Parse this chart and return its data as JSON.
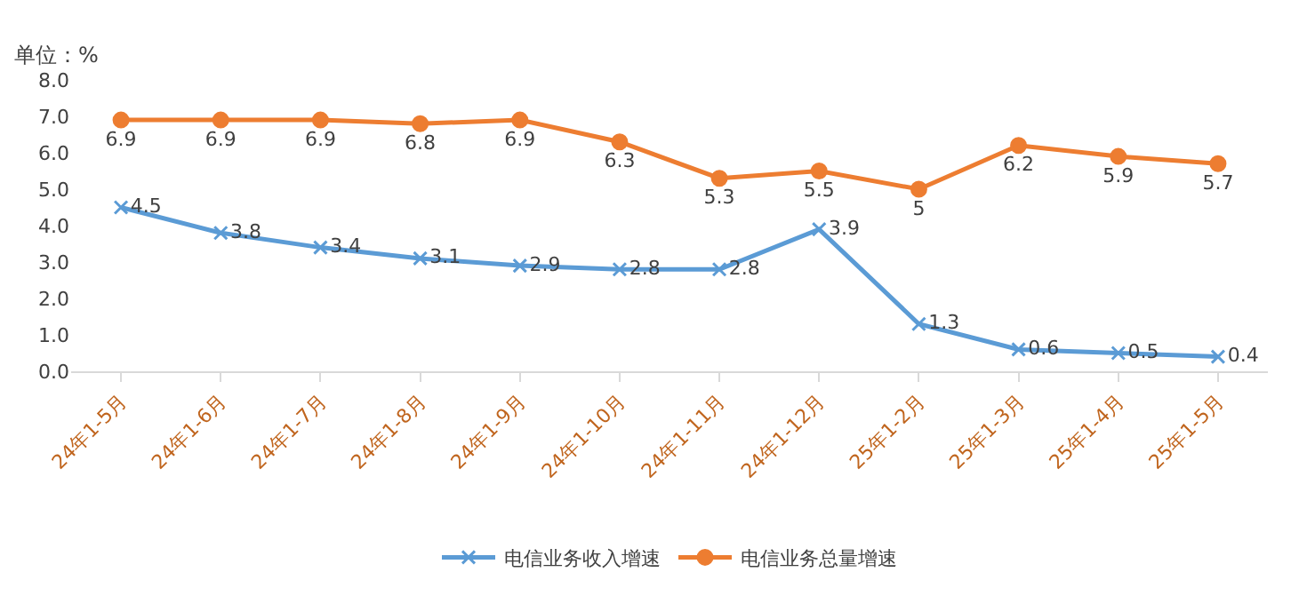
{
  "chart_data": {
    "type": "line",
    "ylabel": "单位：%",
    "categories": [
      "24年1-5月",
      "24年1-6月",
      "24年1-7月",
      "24年1-8月",
      "24年1-9月",
      "24年1-10月",
      "24年1-11月",
      "24年1-12月",
      "25年1-2月",
      "25年1-3月",
      "25年1-4月",
      "25年1-5月"
    ],
    "series": [
      {
        "name": "电信业务收入增速",
        "color": "#5b9bd5",
        "marker": "cross",
        "values": [
          4.5,
          3.8,
          3.4,
          3.1,
          2.9,
          2.8,
          2.8,
          3.9,
          1.3,
          0.6,
          0.5,
          0.4
        ]
      },
      {
        "name": "电信业务总量增速",
        "color": "#ed7d31",
        "marker": "circle",
        "values": [
          6.9,
          6.9,
          6.9,
          6.8,
          6.9,
          6.3,
          5.3,
          5.5,
          5,
          6.2,
          5.9,
          5.7
        ]
      }
    ],
    "ylim": [
      0,
      8
    ],
    "yticks": [
      {
        "value": 0,
        "label": "0.0"
      },
      {
        "value": 1,
        "label": "1.0"
      },
      {
        "value": 2,
        "label": "2.0"
      },
      {
        "value": 3,
        "label": "3.0"
      },
      {
        "value": 4,
        "label": "4.0"
      },
      {
        "value": 5,
        "label": "5.0"
      },
      {
        "value": 6,
        "label": "6.0"
      },
      {
        "value": 7,
        "label": "7.0"
      },
      {
        "value": 8,
        "label": "8.0"
      }
    ],
    "grid": false,
    "legend": "bottom",
    "data_labels": true,
    "line_style": "solid"
  }
}
